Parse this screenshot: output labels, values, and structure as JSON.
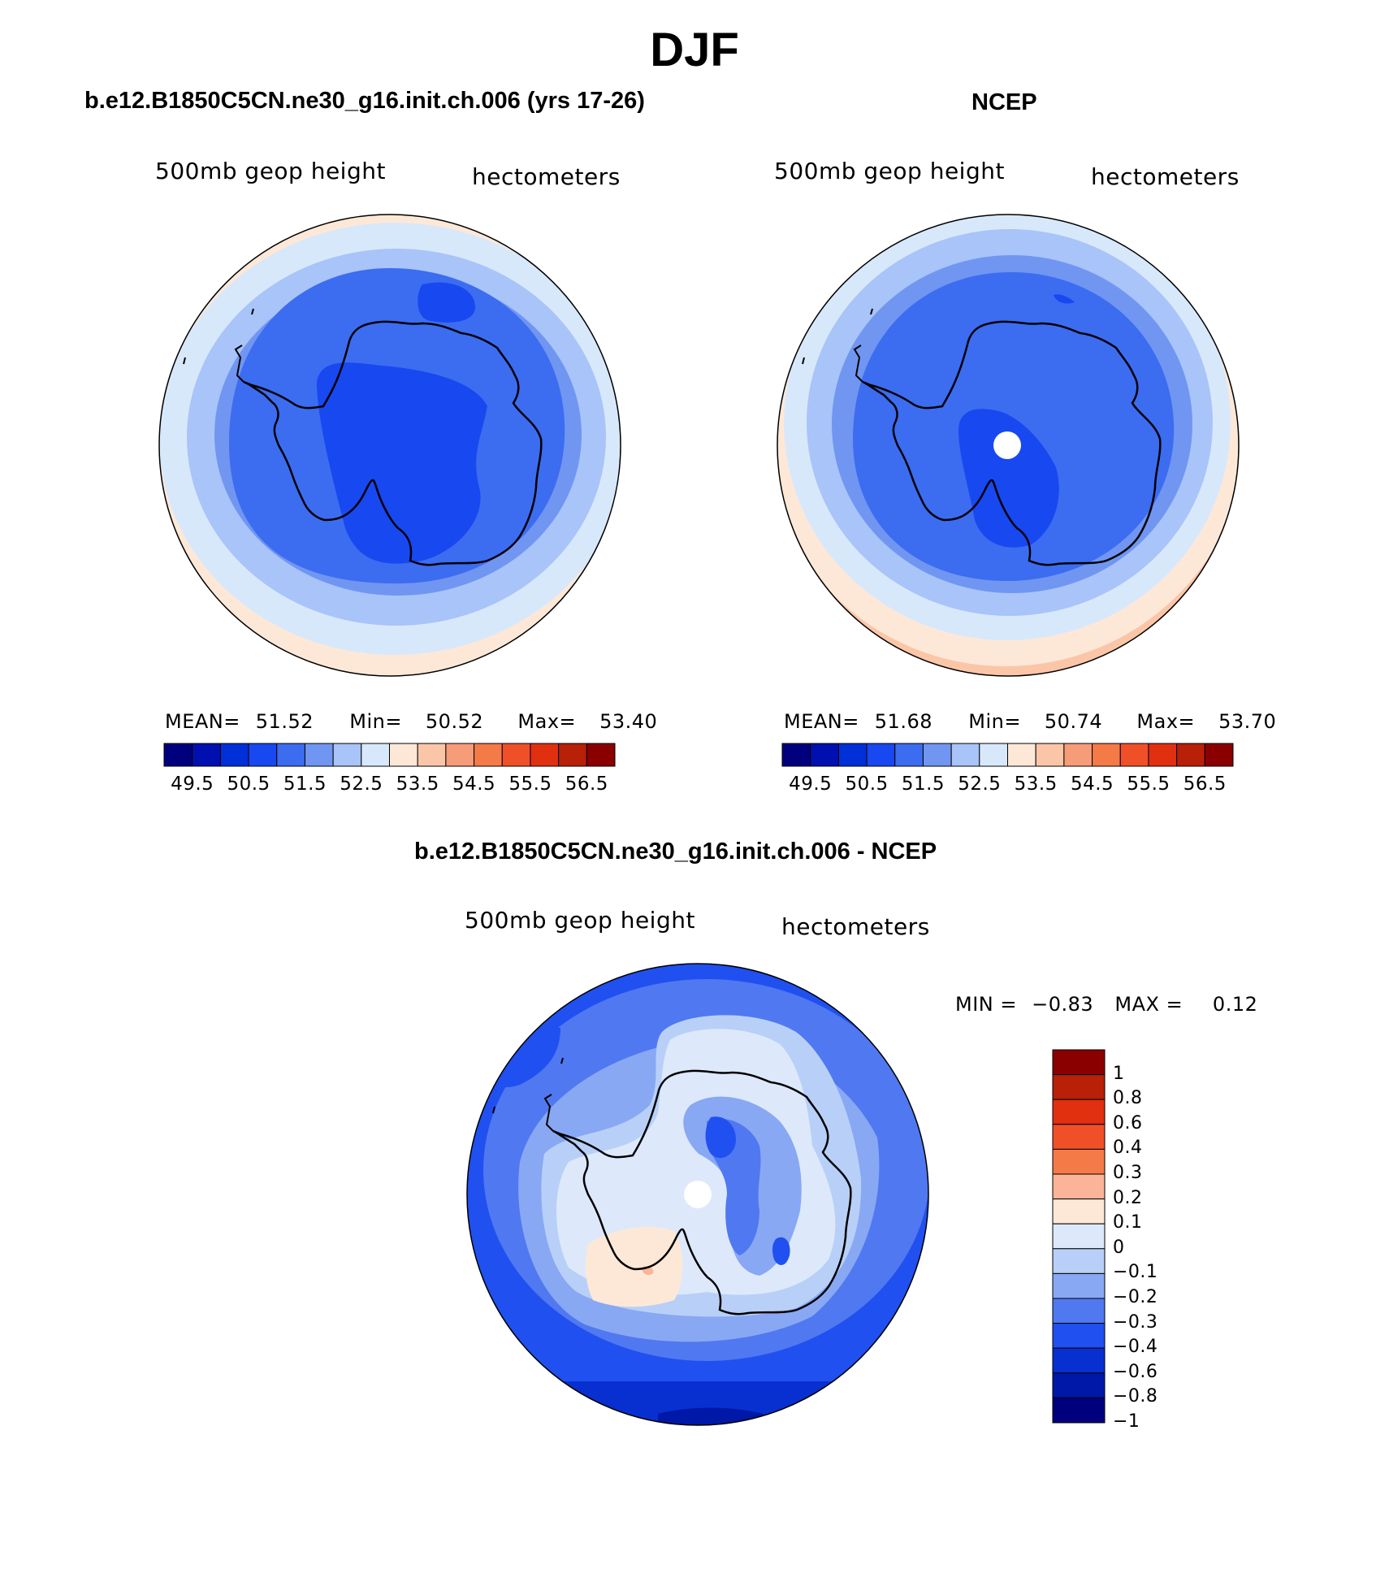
{
  "figure": {
    "title": "DJF"
  },
  "panels": [
    {
      "id": "model",
      "title": "b.e12.B1850C5CN.ne30_g16.init.ch.006 (yrs 17-26)",
      "variable": "500mb geop height",
      "units": "hectometers",
      "stats": {
        "mean_label": "MEAN=",
        "mean": "51.52",
        "min_label": "Min=",
        "min": "50.52",
        "max_label": "Max=",
        "max": "53.40"
      }
    },
    {
      "id": "obs",
      "title": "NCEP",
      "variable": "500mb geop height",
      "units": "hectometers",
      "stats": {
        "mean_label": "MEAN=",
        "mean": "51.68",
        "min_label": "Min=",
        "min": "50.74",
        "max_label": "Max=",
        "max": "53.70"
      }
    },
    {
      "id": "diff",
      "title": "b.e12.B1850C5CN.ne30_g16.init.ch.006 - NCEP",
      "variable": "500mb geop height",
      "units": "hectometers",
      "stats": {
        "min_label": "MIN =",
        "min": "−0.83",
        "max_label": "MAX =",
        "max": "0.12"
      }
    }
  ],
  "colorbars": {
    "height": {
      "colors": [
        "#00007f",
        "#0010b0",
        "#0030d8",
        "#1848f0",
        "#3c6cf0",
        "#7096f2",
        "#a8c4f8",
        "#d8e8fb",
        "#fde8d8",
        "#fbc6a8",
        "#f79c78",
        "#f47a48",
        "#f05028",
        "#e03010",
        "#b82008",
        "#8a0000"
      ],
      "tick_labels": [
        "49.5",
        "50.5",
        "51.5",
        "52.5",
        "53.5",
        "54.5",
        "55.5",
        "56.5"
      ]
    },
    "difference": {
      "colors": [
        "#8a0000",
        "#b82008",
        "#e03010",
        "#f05028",
        "#f47a48",
        "#fbb498",
        "#fde8d8",
        "#dde9fb",
        "#b8d0f8",
        "#88a8f4",
        "#5078f0",
        "#2050f0",
        "#0830d0",
        "#0018a8",
        "#00007f"
      ],
      "tick_labels": [
        "1",
        "0.8",
        "0.6",
        "0.4",
        "0.3",
        "0.2",
        "0.1",
        "0",
        "−0.1",
        "−0.2",
        "−0.3",
        "−0.4",
        "−0.6",
        "−0.8",
        "−1"
      ]
    }
  },
  "chart_data": [
    {
      "type": "heatmap",
      "title": "b.e12.B1850C5CN.ne30_g16.init.ch.006 (yrs 17-26)",
      "projection": "polar stereographic, south pole",
      "variable": "500mb geop height",
      "units": "hectometers",
      "mean": 51.52,
      "min": 50.52,
      "max": 53.4,
      "contour_levels": [
        49.5,
        50.0,
        50.5,
        51.0,
        51.5,
        52.0,
        52.5,
        53.0,
        53.5,
        54.0,
        54.5,
        55.0,
        55.5,
        56.0,
        56.5
      ]
    },
    {
      "type": "heatmap",
      "title": "NCEP",
      "projection": "polar stereographic, south pole",
      "variable": "500mb geop height",
      "units": "hectometers",
      "mean": 51.68,
      "min": 50.74,
      "max": 53.7,
      "contour_levels": [
        49.5,
        50.0,
        50.5,
        51.0,
        51.5,
        52.0,
        52.5,
        53.0,
        53.5,
        54.0,
        54.5,
        55.0,
        55.5,
        56.0,
        56.5
      ]
    },
    {
      "type": "heatmap",
      "title": "b.e12.B1850C5CN.ne30_g16.init.ch.006 - NCEP",
      "projection": "polar stereographic, south pole",
      "variable": "500mb geop height",
      "units": "hectometers",
      "min": -0.83,
      "max": 0.12,
      "contour_levels": [
        -1,
        -0.8,
        -0.6,
        -0.4,
        -0.3,
        -0.2,
        -0.1,
        0,
        0.1,
        0.2,
        0.3,
        0.4,
        0.6,
        0.8,
        1
      ]
    }
  ]
}
